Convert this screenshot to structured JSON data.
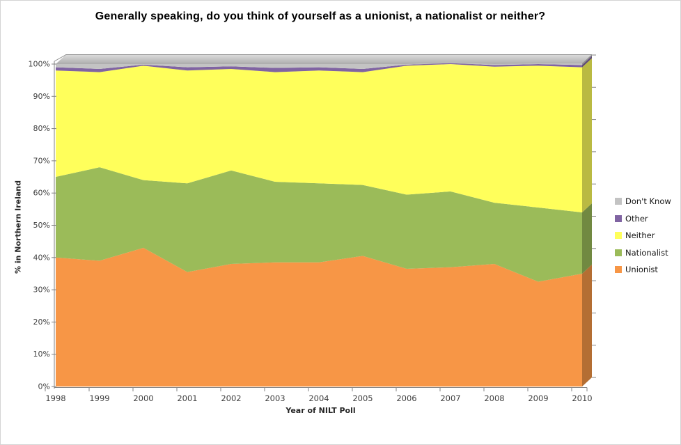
{
  "title": "Generally speaking, do you think of yourself as a unionist, a nationalist or neither?",
  "chart_data": {
    "type": "area",
    "stacking": "stacked-percent",
    "style": "excel-3d-area",
    "x": [
      1998,
      1999,
      2000,
      2001,
      2002,
      2003,
      2004,
      2005,
      2006,
      2007,
      2008,
      2009,
      2010
    ],
    "xlabel": "Year of NILT Poll",
    "ylabel": "% in Northern Ireland",
    "ylim": [
      0,
      100
    ],
    "yticks": [
      0,
      10,
      20,
      30,
      40,
      50,
      60,
      70,
      80,
      90,
      100
    ],
    "ytick_suffix": "%",
    "grid": false,
    "legend_position": "right",
    "legend_order": [
      "Don't Know",
      "Other",
      "Neither",
      "Nationalist",
      "Unionist"
    ],
    "series": [
      {
        "name": "Unionist",
        "color": "#F79646",
        "values": [
          40,
          39,
          43,
          35.5,
          38,
          38.5,
          38.5,
          40.5,
          36.5,
          37,
          38,
          32.5,
          35
        ]
      },
      {
        "name": "Nationalist",
        "color": "#9BBB59",
        "values": [
          25,
          29,
          21,
          27.5,
          29,
          25,
          24.5,
          22,
          23,
          23.5,
          19,
          23,
          19
        ]
      },
      {
        "name": "Neither",
        "color": "#FFFF5B",
        "values": [
          33,
          29.5,
          35.5,
          35,
          31.5,
          34,
          35,
          35,
          40,
          39.5,
          42.2,
          44,
          45
        ]
      },
      {
        "name": "Other",
        "color": "#8064A2",
        "values": [
          1,
          1,
          0.3,
          1,
          0.8,
          1.3,
          1,
          1,
          0.3,
          0.3,
          0.5,
          0.5,
          0.7
        ]
      },
      {
        "name": "Don't Know",
        "color": "#C3C3C3",
        "values": [
          1,
          1.5,
          0.2,
          1,
          0.7,
          1.2,
          1,
          1.5,
          0.2,
          0.2,
          0.3,
          0.2,
          0.5
        ]
      }
    ],
    "axis_colors": {
      "line": "#808080",
      "tick_label": "#3F3F3F"
    },
    "top_face_colors": {
      "light": "#DBDBDB",
      "dark": "#ACACAC",
      "edge": "#8C8C8C"
    }
  }
}
